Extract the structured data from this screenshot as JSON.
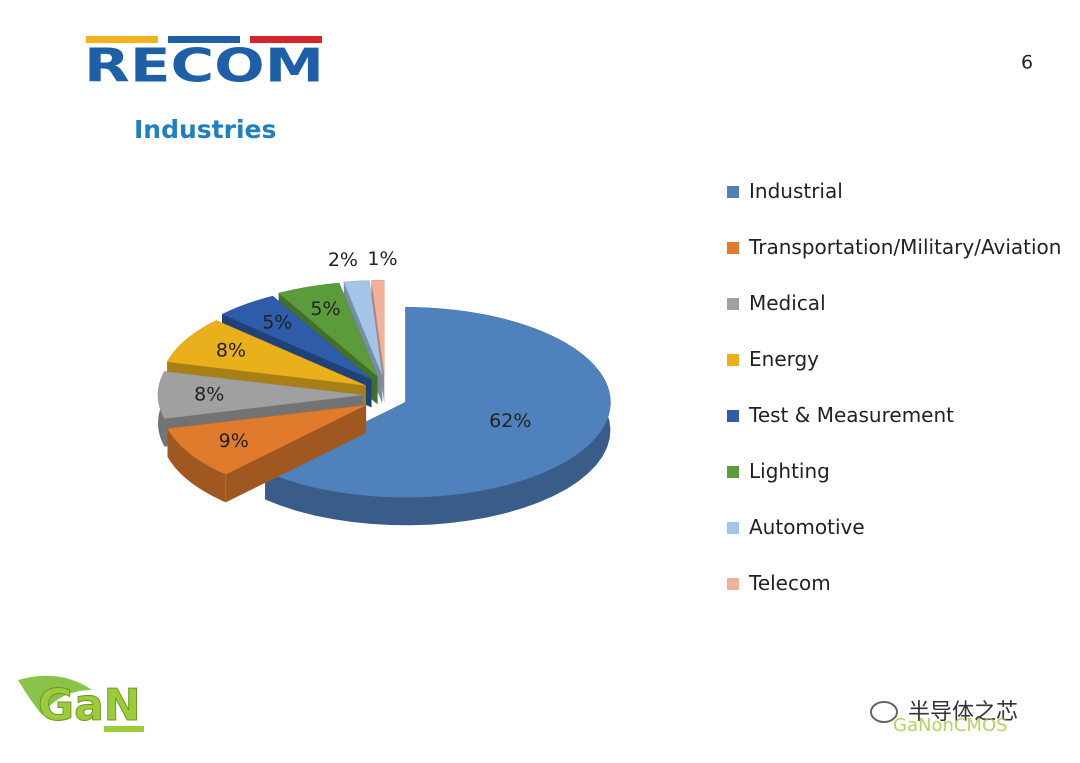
{
  "header": {
    "logo": "RECOM",
    "page_number": "6"
  },
  "chart_data": {
    "type": "pie",
    "title": "Industries",
    "categories": [
      "Industrial",
      "Transportation/Military/Aviation",
      "Medical",
      "Energy",
      "Test & Measurement",
      "Lighting",
      "Automotive",
      "Telecom"
    ],
    "values": [
      62,
      9,
      8,
      8,
      5,
      5,
      2,
      1
    ],
    "value_labels": [
      "62%",
      "9%",
      "8%",
      "8%",
      "5%",
      "5%",
      "2%",
      "1%"
    ],
    "colors": [
      "#4f81bd",
      "#e07a2c",
      "#a0a0a0",
      "#e9b01c",
      "#2e5ca8",
      "#5c9b3c",
      "#a4c4e8",
      "#f1b29c"
    ],
    "legend": "right"
  },
  "footer": {
    "logo": "GaN",
    "watermark": "半导体之芯",
    "watermark_sub": "GaNonCMOS"
  }
}
